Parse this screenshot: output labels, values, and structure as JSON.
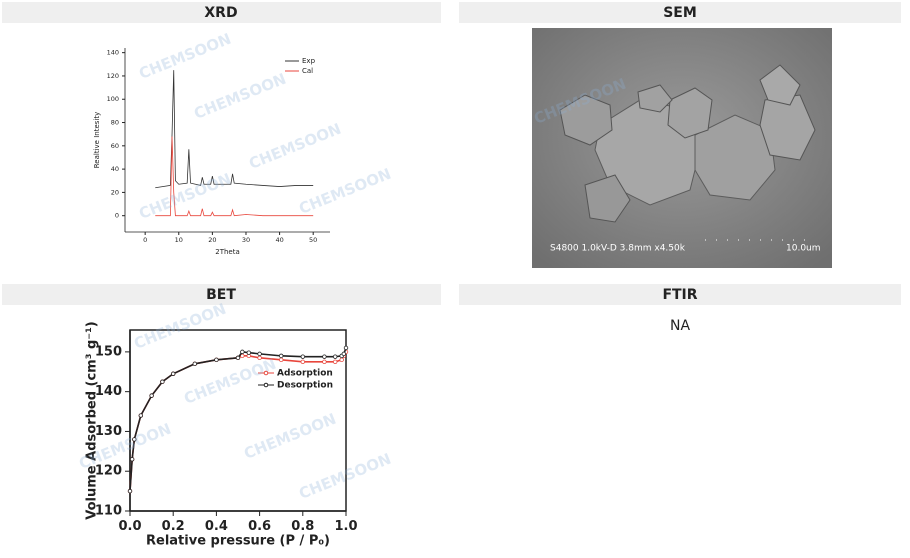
{
  "panels": [
    {
      "title": "XRD",
      "chart": {
        "type": "line",
        "xlabel": "2Theta",
        "ylabel": "Realtive Intesity",
        "xlim": [
          -6,
          55
        ],
        "ylim": [
          -14,
          144
        ],
        "xticks": [
          0,
          10,
          20,
          30,
          40,
          50
        ],
        "yticks": [
          0,
          20,
          40,
          60,
          80,
          100,
          120,
          140
        ],
        "legend": "upper-right",
        "x": [
          3,
          7.5,
          8,
          8.5,
          9,
          10,
          12.5,
          13,
          13.5,
          15,
          16.5,
          17,
          17.5,
          19.5,
          20,
          20.5,
          25.5,
          26,
          26.5,
          30,
          35,
          40,
          45,
          50
        ],
        "series": [
          {
            "name": "Exp",
            "color": "#333333",
            "values": [
              24,
              26,
              70,
              125,
              30,
              27,
              28,
              57,
              28,
              27,
              26,
              33,
              27,
              27,
              34,
              27,
              27,
              36,
              28,
              27,
              26,
              25,
              26,
              26
            ]
          },
          {
            "name": "Cal",
            "color": "#e8463c",
            "values": [
              0,
              0,
              68,
              20,
              0,
              0,
              0,
              4,
              0,
              0,
              0,
              6,
              0,
              0,
              3,
              0,
              0,
              5,
              0,
              1,
              0,
              0,
              0,
              0
            ]
          }
        ]
      }
    },
    {
      "title": "SEM",
      "image": {
        "caption": "S4800 1.0kV-D 3.8mm x4.50k",
        "scale": "10.0um"
      }
    },
    {
      "title": "BET",
      "chart": {
        "type": "line",
        "xlabel": "Relative pressure (P / P₀)",
        "ylabel": "Volume Adsorbed (cm³ g⁻¹)",
        "xlim": [
          0,
          1
        ],
        "ylim": [
          110,
          155.5
        ],
        "xticks": [
          {
            "value": 0,
            "label": "0.0"
          },
          {
            "value": 0.2,
            "label": "0.2"
          },
          {
            "value": 0.4,
            "label": "0.4"
          },
          {
            "value": 0.6,
            "label": "0.6"
          },
          {
            "value": 0.8,
            "label": "0.8"
          },
          {
            "value": 1,
            "label": "1.0"
          }
        ],
        "yticks": [
          110,
          120,
          130,
          140,
          150
        ],
        "legend": "center-right",
        "x": [
          0,
          0.01,
          0.02,
          0.05,
          0.1,
          0.15,
          0.2,
          0.3,
          0.4,
          0.5,
          0.52,
          0.55,
          0.6,
          0.7,
          0.8,
          0.9,
          0.95,
          0.98,
          0.99,
          1.0
        ],
        "series": [
          {
            "name": "Adsorption",
            "color": "#e8463c",
            "marker": "circle",
            "values": [
              115,
              123,
              128,
              134,
              139,
              142.5,
              144.5,
              147,
              148,
              148.5,
              149,
              149,
              148.5,
              148,
              147.5,
              147.5,
              147.5,
              148,
              149,
              150
            ]
          },
          {
            "name": "Desorption",
            "color": "#222222",
            "marker": "circle",
            "values": [
              115,
              123,
              128,
              134,
              139,
              142.5,
              144.5,
              147,
              148,
              148.5,
              150,
              149.8,
              149.5,
              149,
              148.8,
              148.8,
              148.8,
              149,
              149.5,
              151
            ]
          }
        ]
      }
    },
    {
      "title": "FTIR",
      "text": "NA"
    }
  ],
  "watermark": "CHEMSOON"
}
